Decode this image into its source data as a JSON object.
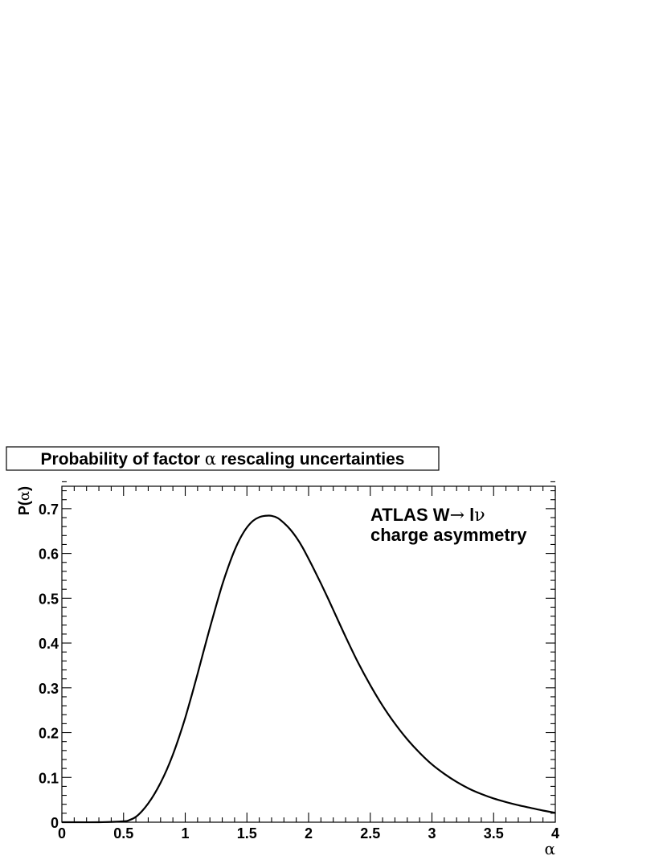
{
  "chart_data": {
    "type": "line",
    "title_pre": "Probability of factor ",
    "title_symbol": "α",
    "title_post": " rescaling uncertainties",
    "xlabel": "α",
    "ylabel_pre": "P(",
    "ylabel_symbol": "α",
    "ylabel_post": ")",
    "annotation_line1_pre": "ATLAS W",
    "annotation_line1_arrow": "→",
    "annotation_line1_l": " l",
    "annotation_line1_nu": "ν",
    "annotation_line2": "charge asymmetry",
    "xlim": [
      0,
      4
    ],
    "ylim": [
      0,
      0.75
    ],
    "x_ticks": [
      0,
      0.5,
      1,
      1.5,
      2,
      2.5,
      3,
      3.5,
      4
    ],
    "x_tick_labels": [
      "0",
      "0.5",
      "1",
      "1.5",
      "2",
      "2.5",
      "3",
      "3.5",
      "4"
    ],
    "y_ticks": [
      0,
      0.1,
      0.2,
      0.3,
      0.4,
      0.5,
      0.6,
      0.7
    ],
    "y_tick_labels": [
      "0",
      "0.1",
      "0.2",
      "0.3",
      "0.4",
      "0.5",
      "0.6",
      "0.7"
    ],
    "grid": false,
    "series": [
      {
        "color": "#000000",
        "points": [
          [
            0,
            0
          ],
          [
            0.3,
            0
          ],
          [
            0.5,
            0.002
          ],
          [
            0.55,
            0.005
          ],
          [
            0.6,
            0.012
          ],
          [
            0.65,
            0.025
          ],
          [
            0.7,
            0.042
          ],
          [
            0.75,
            0.063
          ],
          [
            0.8,
            0.088
          ],
          [
            0.85,
            0.117
          ],
          [
            0.9,
            0.151
          ],
          [
            0.95,
            0.19
          ],
          [
            1.0,
            0.233
          ],
          [
            1.05,
            0.281
          ],
          [
            1.1,
            0.331
          ],
          [
            1.15,
            0.383
          ],
          [
            1.2,
            0.434
          ],
          [
            1.25,
            0.483
          ],
          [
            1.3,
            0.53
          ],
          [
            1.35,
            0.571
          ],
          [
            1.4,
            0.607
          ],
          [
            1.45,
            0.636
          ],
          [
            1.5,
            0.658
          ],
          [
            1.55,
            0.673
          ],
          [
            1.6,
            0.681
          ],
          [
            1.65,
            0.684
          ],
          [
            1.7,
            0.684
          ],
          [
            1.75,
            0.679
          ],
          [
            1.8,
            0.668
          ],
          [
            1.85,
            0.654
          ],
          [
            1.9,
            0.636
          ],
          [
            1.95,
            0.614
          ],
          [
            2.0,
            0.588
          ],
          [
            2.05,
            0.561
          ],
          [
            2.1,
            0.533
          ],
          [
            2.15,
            0.504
          ],
          [
            2.2,
            0.474
          ],
          [
            2.3,
            0.414
          ],
          [
            2.4,
            0.357
          ],
          [
            2.5,
            0.306
          ],
          [
            2.6,
            0.26
          ],
          [
            2.7,
            0.22
          ],
          [
            2.8,
            0.185
          ],
          [
            2.9,
            0.155
          ],
          [
            3.0,
            0.129
          ],
          [
            3.1,
            0.108
          ],
          [
            3.2,
            0.09
          ],
          [
            3.3,
            0.075
          ],
          [
            3.4,
            0.063
          ],
          [
            3.5,
            0.053
          ],
          [
            3.6,
            0.045
          ],
          [
            3.7,
            0.038
          ],
          [
            3.8,
            0.032
          ],
          [
            3.9,
            0.026
          ],
          [
            4.0,
            0.021
          ]
        ]
      }
    ]
  }
}
